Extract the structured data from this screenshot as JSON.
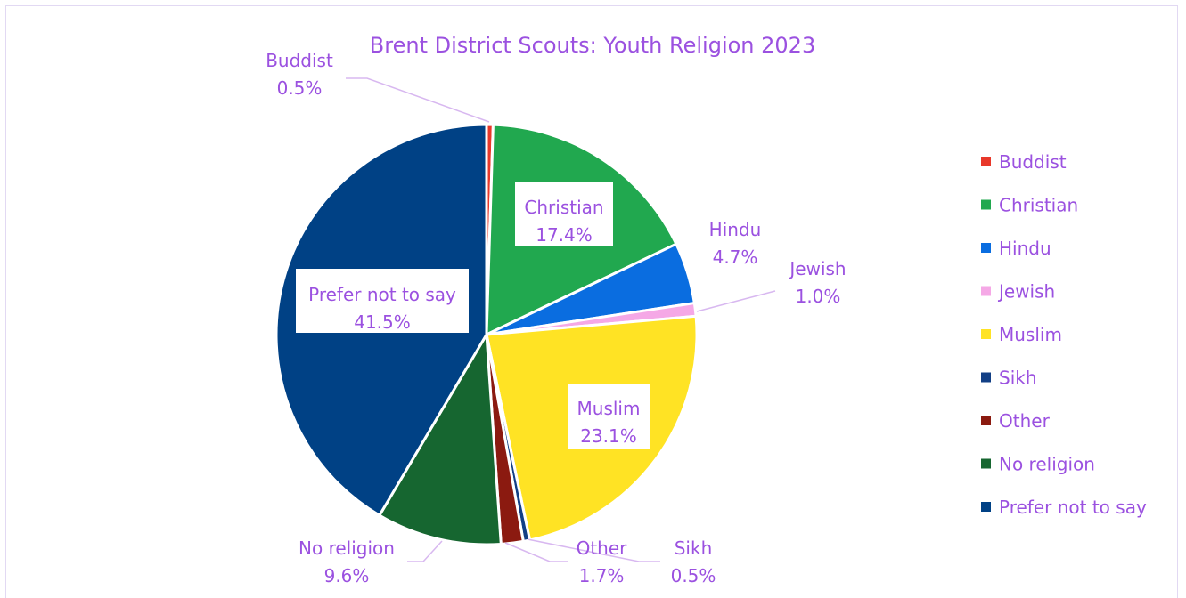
{
  "chart_data": {
    "type": "pie",
    "title": "Brent District Scouts: Youth Religion 2023",
    "legend_position": "right",
    "text_color": "#9b51e0",
    "leader_color": "#d8b8f0",
    "slices": [
      {
        "name": "Buddist",
        "value": 0.5,
        "label": "0.5%",
        "color": "#e8382a"
      },
      {
        "name": "Christian",
        "value": 17.4,
        "label": "17.4%",
        "color": "#21a84f"
      },
      {
        "name": "Hindu",
        "value": 4.7,
        "label": "4.7%",
        "color": "#0a6de0"
      },
      {
        "name": "Jewish",
        "value": 1.0,
        "label": "1.0%",
        "color": "#f5a8e6"
      },
      {
        "name": "Muslim",
        "value": 23.1,
        "label": "23.1%",
        "color": "#ffe324"
      },
      {
        "name": "Sikh",
        "value": 0.5,
        "label": "0.5%",
        "color": "#123f85"
      },
      {
        "name": "Other",
        "value": 1.7,
        "label": "1.7%",
        "color": "#8b1a10"
      },
      {
        "name": "No religion",
        "value": 9.6,
        "label": "9.6%",
        "color": "#166630"
      },
      {
        "name": "Prefer not to say",
        "value": 41.5,
        "label": "41.5%",
        "color": "#004185"
      }
    ]
  }
}
